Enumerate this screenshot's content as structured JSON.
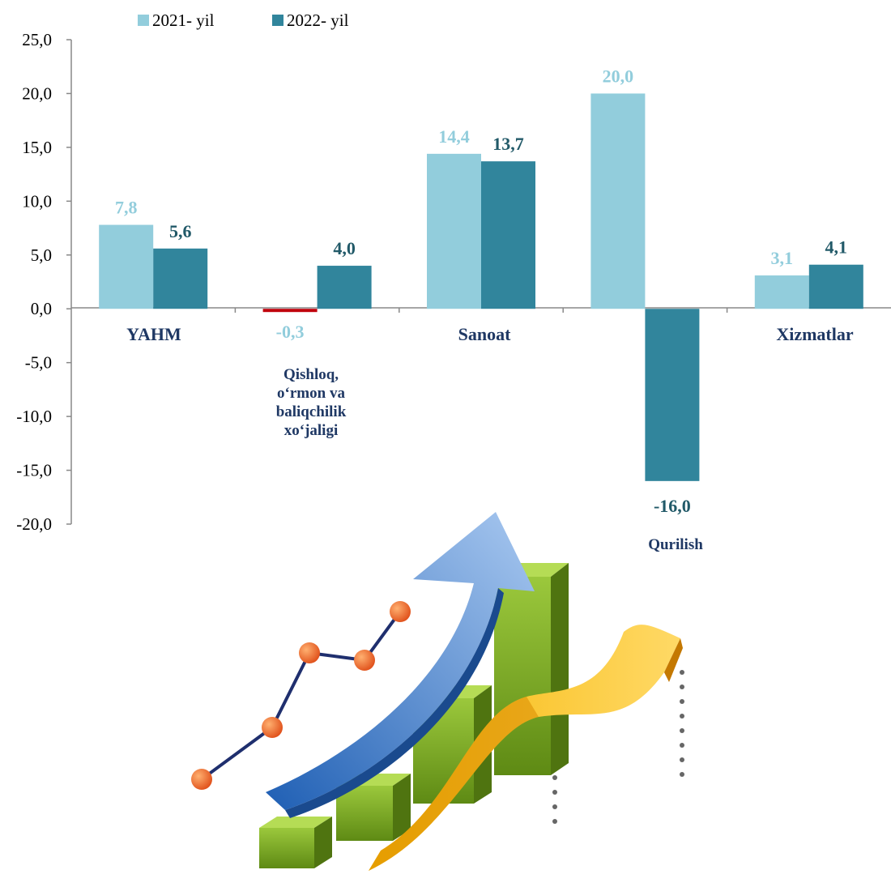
{
  "chart_data": {
    "type": "bar",
    "categories": [
      "YAHM",
      "Qishloq, o‘rmon va baliqchilik xo‘jaligi",
      "Sanoat",
      "Qurilish",
      "Xizmatlar"
    ],
    "category_lines": [
      [
        "YAHM"
      ],
      [
        "Qishloq,",
        "o‘rmon va",
        "baliqchilik",
        "xo‘jaligi"
      ],
      [
        "Sanoat"
      ],
      [
        "Qurilish"
      ],
      [
        "Xizmatlar"
      ]
    ],
    "series": [
      {
        "name": "2021- yil",
        "values": [
          7.8,
          -0.3,
          14.4,
          20.0,
          3.1
        ],
        "labels": [
          "7,8",
          "-0,3",
          "14,4",
          "20,0",
          "3,1"
        ],
        "color": "#92cddc"
      },
      {
        "name": "2022- yil",
        "values": [
          5.6,
          4.0,
          13.7,
          -16.0,
          4.1
        ],
        "labels": [
          "5,6",
          "4,0",
          "13,7",
          "-16,0",
          "4,1"
        ],
        "color": "#31859c"
      }
    ],
    "negative_bar_color": "#c0000c",
    "yticks": [
      "25,0",
      "20,0",
      "15,0",
      "10,0",
      "5,0",
      "0,0",
      "-5,0",
      "-10,0",
      "-15,0",
      "-20,0"
    ],
    "ylim": [
      -20,
      25
    ],
    "legend": "top-left",
    "title": "",
    "xlabel": "",
    "ylabel": ""
  },
  "decoration": {
    "illustration": "growth-arrow-bars-illustration"
  }
}
